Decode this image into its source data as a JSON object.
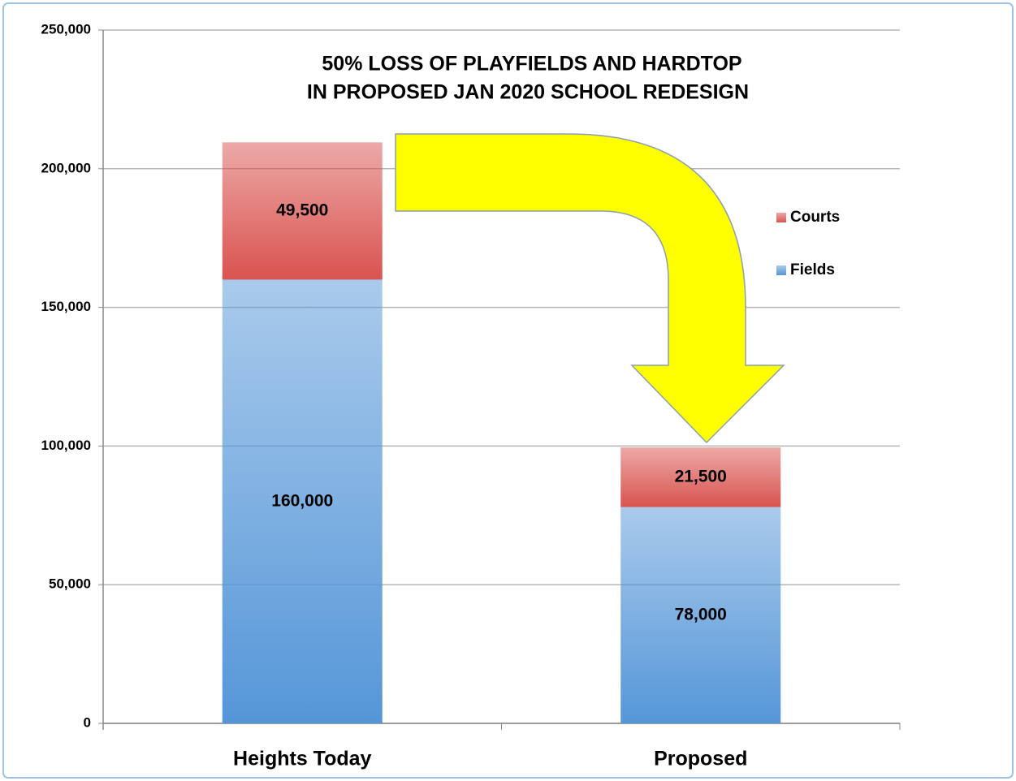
{
  "chart_data": {
    "type": "stacked_bar",
    "title": [
      "50% LOSS OF PLAYFIELDS AND HARDTOP",
      "IN PROPOSED JAN 2020 SCHOOL REDESIGN"
    ],
    "categories": [
      "Heights Today",
      "Proposed"
    ],
    "series": [
      {
        "name": "Fields",
        "color": "#5596d8",
        "values": [
          160000,
          78000
        ],
        "value_labels": [
          "160,000",
          "78,000"
        ]
      },
      {
        "name": "Courts",
        "color": "#d9534f",
        "values": [
          49500,
          21500
        ],
        "value_labels": [
          "49,500",
          "21,500"
        ]
      }
    ],
    "ylim": [
      0,
      250000
    ],
    "yticks": [
      0,
      {
        "value": 50000,
        "label": "50,000"
      },
      {
        "value": 100000,
        "label": "100,000"
      },
      {
        "value": 150000,
        "label": "150,000"
      },
      {
        "value": 200000,
        "label": "200,000"
      },
      {
        "value": 250000,
        "label": "250,000"
      }
    ],
    "grid": true,
    "legend": "right"
  }
}
